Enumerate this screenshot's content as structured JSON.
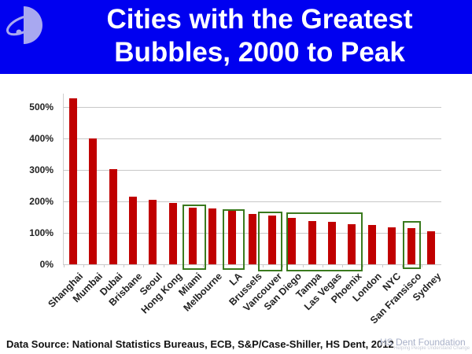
{
  "header": {
    "title_line1": "Cities with the Greatest",
    "title_line2": "Bubbles, 2000 to Peak",
    "background": "#0000f0",
    "logo_icon": "hs-dent-orbit-logo"
  },
  "footer": {
    "source": "Data Source: National Statistics Bureaus, ECB, S&P/Case-Shiller, HS Dent, 2012",
    "watermark": "HS Dent Foundation",
    "watermark_tagline": "Helping People Understand Change"
  },
  "chart_data": {
    "type": "bar",
    "title": "Cities with the Greatest Bubbles, 2000 to Peak",
    "xlabel": "",
    "ylabel": "",
    "ylim": [
      0,
      550
    ],
    "yticks": [
      "0%",
      "100%",
      "200%",
      "300%",
      "400%",
      "500%"
    ],
    "grid": true,
    "bar_color": "#c00000",
    "highlight_color": "#3a7a1e",
    "categories": [
      "Shanghai",
      "Mumbai",
      "Dubai",
      "Brisbane",
      "Seoul",
      "Hong Kong",
      "Miami",
      "Melbourne",
      "LA",
      "Brussels",
      "Vancouver",
      "San Diego",
      "Tampa",
      "Las Vegas",
      "Phoenix",
      "London",
      "NYC",
      "San Fransisco",
      "Sydney"
    ],
    "values": [
      528,
      400,
      302,
      215,
      204,
      195,
      180,
      177,
      169,
      159,
      155,
      148,
      138,
      134,
      127,
      126,
      117,
      115,
      105
    ],
    "highlighted": [
      "Miami",
      "LA",
      "Vancouver",
      "San Diego",
      "Tampa",
      "Las Vegas",
      "Phoenix",
      "San Fransisco"
    ]
  }
}
